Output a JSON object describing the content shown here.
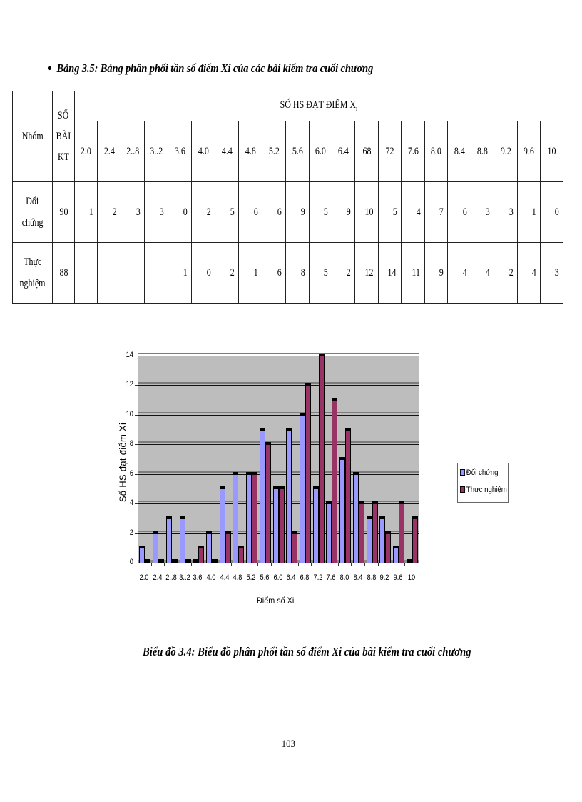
{
  "table_caption": "Bảng 3.5: Bảng phân phối tần số điểm Xi của các bài kiểm tra cuối chương",
  "table": {
    "col_group": "Nhóm",
    "col_count_line1": "SỐ",
    "col_count_line2": "BÀI",
    "col_count_line3": "KT",
    "header_group": "SỐ HS ĐẠT ĐIỂM X",
    "header_group_sub": "i",
    "scores": [
      "2.0",
      "2.4",
      "2..8",
      "3..2",
      "3.6",
      "4.0",
      "4.4",
      "4.8",
      "5.2",
      "5.6",
      "6.0",
      "6.4",
      "68",
      "72",
      "7.6",
      "8.0",
      "8.4",
      "8.8",
      "9.2",
      "9.6",
      "10"
    ],
    "rows": [
      {
        "label_line1": "Đối",
        "label_line2": "chứng",
        "count": "90",
        "values": [
          "1",
          "2",
          "3",
          "3",
          "0",
          "2",
          "5",
          "6",
          "6",
          "9",
          "5",
          "9",
          "10",
          "5",
          "4",
          "7",
          "6",
          "3",
          "3",
          "1",
          "0"
        ]
      },
      {
        "label_line1": "Thực",
        "label_line2": "nghiệm",
        "count": "88",
        "values": [
          "",
          "",
          "",
          "",
          "1",
          "0",
          "2",
          "1",
          "6",
          "8",
          "5",
          "2",
          "12",
          "14",
          "11",
          "9",
          "4",
          "4",
          "2",
          "4",
          "3"
        ]
      }
    ]
  },
  "chart_data": {
    "type": "bar",
    "title": "",
    "xlabel": "Điểm số Xi",
    "ylabel": "Số HS đạt điểm Xi",
    "categories": [
      "2.0",
      "2.4",
      "2..8",
      "3..2",
      "3.6",
      "4.0",
      "4.4",
      "4.8",
      "5.2",
      "5.6",
      "6.0",
      "6.4",
      "6.8",
      "7.2",
      "7.6",
      "8.0",
      "8.4",
      "8.8",
      "9.2",
      "9.6",
      "10"
    ],
    "series": [
      {
        "name": "Đối chứng",
        "color": "#9999ff",
        "values": [
          1,
          2,
          3,
          3,
          0,
          2,
          5,
          6,
          6,
          9,
          5,
          9,
          10,
          5,
          4,
          7,
          6,
          3,
          3,
          1,
          0
        ]
      },
      {
        "name": "Thực nghiệm",
        "color": "#993366",
        "values": [
          0,
          0,
          0,
          0,
          1,
          0,
          2,
          1,
          6,
          8,
          5,
          2,
          12,
          14,
          11,
          9,
          4,
          4,
          2,
          4,
          3
        ]
      }
    ],
    "ylim": [
      0,
      14
    ],
    "yticks": [
      "0",
      "2",
      "4",
      "6",
      "8",
      "10",
      "12",
      "14"
    ],
    "grid": true,
    "legend_position": "right",
    "plot_background": "#c0c0c0"
  },
  "chart_caption": "Biểu đồ 3.4: Biểu đồ phân phối tần số điểm Xi của bài kiểm tra cuối chương",
  "page_number": "103"
}
